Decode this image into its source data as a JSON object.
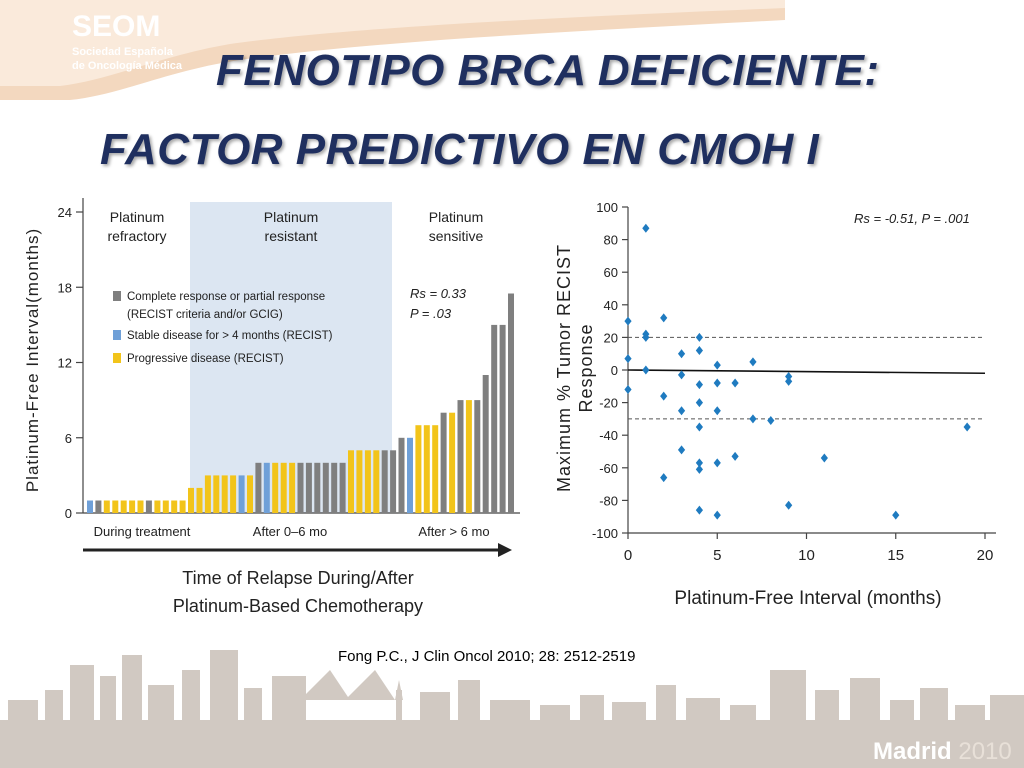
{
  "header": {
    "logo_main": "SEOM",
    "logo_sub1": "Sociedad Española",
    "logo_sub2": "de Oncología Médica",
    "title_line1": "FENOTIPO BRCA DEFICIENTE:",
    "title_line2": "FACTOR PREDICTIVO EN CMOH I"
  },
  "citation": "Fong P.C., J Clin Oncol 2010; 28: 2512-2519",
  "footer": {
    "city": "Madrid",
    "year": "2010"
  },
  "colors": {
    "title": "#1f2f5f",
    "gray_bar": "#7f7f7f",
    "blue_bar": "#6fa0d8",
    "yellow_bar": "#f2c41a",
    "resistant_band": "#dce6f2",
    "scatter_point": "#1f7bc0",
    "logo_band": "#f3d8bf"
  },
  "chart_data": [
    {
      "type": "bar",
      "ylabel": "Platinum-Free Interval(months)",
      "xlabel_line1": "Time of Relapse During/After",
      "xlabel_line2": "Platinum-Based Chemotherapy",
      "ylim": [
        0,
        24
      ],
      "yticks": [
        "0",
        "6",
        "12",
        "18",
        "24"
      ],
      "x_group_labels": [
        "During treatment",
        "After 0–6 mo",
        "After > 6 mo"
      ],
      "regions": [
        {
          "line1": "Platinum",
          "line2": "refractory"
        },
        {
          "line1": "Platinum",
          "line2": "resistant"
        },
        {
          "line1": "Platinum",
          "line2": "sensitive"
        }
      ],
      "legend": [
        {
          "line1": "Complete response or partial response",
          "line2": "(RECIST criteria and/or GCIG)",
          "color": "gray"
        },
        {
          "line1": "Stable disease for > 4 months (RECIST)",
          "line2": "",
          "color": "blue"
        },
        {
          "line1": "Progressive disease (RECIST)",
          "line2": "",
          "color": "yellow"
        }
      ],
      "stat_line1": "Rs = 0.33",
      "stat_line2": "P = .03",
      "bars": [
        {
          "value": 1,
          "color": "blue"
        },
        {
          "value": 1,
          "color": "gray"
        },
        {
          "value": 1,
          "color": "yellow"
        },
        {
          "value": 1,
          "color": "yellow"
        },
        {
          "value": 1,
          "color": "yellow"
        },
        {
          "value": 1,
          "color": "yellow"
        },
        {
          "value": 1,
          "color": "yellow"
        },
        {
          "value": 1,
          "color": "gray"
        },
        {
          "value": 1,
          "color": "yellow"
        },
        {
          "value": 1,
          "color": "yellow"
        },
        {
          "value": 1,
          "color": "yellow"
        },
        {
          "value": 1,
          "color": "yellow"
        },
        {
          "value": 2,
          "color": "yellow"
        },
        {
          "value": 2,
          "color": "yellow"
        },
        {
          "value": 3,
          "color": "yellow"
        },
        {
          "value": 3,
          "color": "yellow"
        },
        {
          "value": 3,
          "color": "yellow"
        },
        {
          "value": 3,
          "color": "yellow"
        },
        {
          "value": 3,
          "color": "blue"
        },
        {
          "value": 3,
          "color": "yellow"
        },
        {
          "value": 4,
          "color": "gray"
        },
        {
          "value": 4,
          "color": "blue"
        },
        {
          "value": 4,
          "color": "yellow"
        },
        {
          "value": 4,
          "color": "yellow"
        },
        {
          "value": 4,
          "color": "yellow"
        },
        {
          "value": 4,
          "color": "gray"
        },
        {
          "value": 4,
          "color": "gray"
        },
        {
          "value": 4,
          "color": "gray"
        },
        {
          "value": 4,
          "color": "gray"
        },
        {
          "value": 4,
          "color": "gray"
        },
        {
          "value": 4,
          "color": "gray"
        },
        {
          "value": 5,
          "color": "yellow"
        },
        {
          "value": 5,
          "color": "yellow"
        },
        {
          "value": 5,
          "color": "yellow"
        },
        {
          "value": 5,
          "color": "yellow"
        },
        {
          "value": 5,
          "color": "gray"
        },
        {
          "value": 5,
          "color": "gray"
        },
        {
          "value": 6,
          "color": "gray"
        },
        {
          "value": 6,
          "color": "blue"
        },
        {
          "value": 7,
          "color": "yellow"
        },
        {
          "value": 7,
          "color": "yellow"
        },
        {
          "value": 7,
          "color": "yellow"
        },
        {
          "value": 8,
          "color": "gray"
        },
        {
          "value": 8,
          "color": "yellow"
        },
        {
          "value": 9,
          "color": "gray"
        },
        {
          "value": 9,
          "color": "yellow"
        },
        {
          "value": 9,
          "color": "gray"
        },
        {
          "value": 11,
          "color": "gray"
        },
        {
          "value": 15,
          "color": "gray"
        },
        {
          "value": 15,
          "color": "gray"
        },
        {
          "value": 17.5,
          "color": "gray"
        }
      ],
      "region_bounds": [
        12,
        37
      ]
    },
    {
      "type": "scatter",
      "xlabel": "Platinum-Free Interval (months)",
      "ylabel_line1": "Maximum % Tumor RECIST",
      "ylabel_line2": "Response",
      "xlim": [
        0,
        20
      ],
      "ylim": [
        -100,
        100
      ],
      "xticks": [
        "0",
        "5",
        "10",
        "15",
        "20"
      ],
      "yticks": [
        "100",
        "80",
        "60",
        "40",
        "20",
        "0",
        "-20",
        "-40",
        "-60",
        "-80",
        "-100"
      ],
      "stat": "Rs = -0.51, P = .001",
      "reference_lines": [
        20,
        -30
      ],
      "trend_line": {
        "x0": 0,
        "y0": 0,
        "x1": 20,
        "y1": -2
      },
      "points": [
        {
          "x": 0,
          "y": 30
        },
        {
          "x": 0,
          "y": 7
        },
        {
          "x": 0,
          "y": -12
        },
        {
          "x": 1,
          "y": 87
        },
        {
          "x": 1,
          "y": 22
        },
        {
          "x": 1,
          "y": 20
        },
        {
          "x": 1,
          "y": 0
        },
        {
          "x": 2,
          "y": 32
        },
        {
          "x": 2,
          "y": -16
        },
        {
          "x": 2,
          "y": -66
        },
        {
          "x": 3,
          "y": 10
        },
        {
          "x": 3,
          "y": -3
        },
        {
          "x": 3,
          "y": -25
        },
        {
          "x": 3,
          "y": -49
        },
        {
          "x": 4,
          "y": 20
        },
        {
          "x": 4,
          "y": 12
        },
        {
          "x": 4,
          "y": -9
        },
        {
          "x": 4,
          "y": -20
        },
        {
          "x": 4,
          "y": -35
        },
        {
          "x": 4,
          "y": -57
        },
        {
          "x": 4,
          "y": -61
        },
        {
          "x": 4,
          "y": -86
        },
        {
          "x": 5,
          "y": 3
        },
        {
          "x": 5,
          "y": -8
        },
        {
          "x": 5,
          "y": -25
        },
        {
          "x": 5,
          "y": -57
        },
        {
          "x": 5,
          "y": -89
        },
        {
          "x": 6,
          "y": -8
        },
        {
          "x": 6,
          "y": -53
        },
        {
          "x": 7,
          "y": 5
        },
        {
          "x": 7,
          "y": -30
        },
        {
          "x": 8,
          "y": -31
        },
        {
          "x": 9,
          "y": -4
        },
        {
          "x": 9,
          "y": -7
        },
        {
          "x": 9,
          "y": -83
        },
        {
          "x": 11,
          "y": -54
        },
        {
          "x": 15,
          "y": -89
        },
        {
          "x": 19,
          "y": -35
        }
      ]
    }
  ]
}
